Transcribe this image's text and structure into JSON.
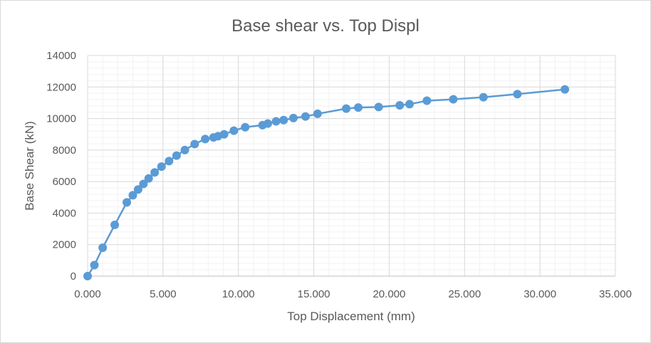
{
  "chart_data": {
    "type": "line",
    "title": "Base shear vs. Top Displ",
    "xlabel": "Top Displacement (mm)",
    "ylabel": "Base Shear (kN)",
    "xlim": [
      0,
      35
    ],
    "ylim": [
      0,
      14000
    ],
    "x_ticks": [
      0,
      5,
      10,
      15,
      20,
      25,
      30,
      35
    ],
    "x_tick_labels": [
      "0.000",
      "5.000",
      "10.000",
      "15.000",
      "20.000",
      "25.000",
      "30.000",
      "35.000"
    ],
    "y_ticks": [
      0,
      2000,
      4000,
      6000,
      8000,
      10000,
      12000,
      14000
    ],
    "y_tick_labels": [
      "0",
      "2000",
      "4000",
      "6000",
      "8000",
      "10000",
      "12000",
      "14000"
    ],
    "grid": true,
    "minor_grid": true,
    "legend": "none",
    "series": [
      {
        "color": "#5b9bd5",
        "marker": "circle",
        "points": [
          [
            0.0,
            0
          ],
          [
            0.45,
            700
          ],
          [
            1.0,
            1800
          ],
          [
            1.8,
            3250
          ],
          [
            2.6,
            4680
          ],
          [
            3.0,
            5130
          ],
          [
            3.35,
            5500
          ],
          [
            3.7,
            5850
          ],
          [
            4.05,
            6200
          ],
          [
            4.45,
            6580
          ],
          [
            4.9,
            6950
          ],
          [
            5.4,
            7300
          ],
          [
            5.9,
            7650
          ],
          [
            6.45,
            8000
          ],
          [
            7.1,
            8380
          ],
          [
            7.8,
            8700
          ],
          [
            8.35,
            8800
          ],
          [
            8.65,
            8880
          ],
          [
            9.05,
            9000
          ],
          [
            9.7,
            9230
          ],
          [
            10.45,
            9450
          ],
          [
            11.6,
            9580
          ],
          [
            11.95,
            9680
          ],
          [
            12.5,
            9820
          ],
          [
            13.0,
            9900
          ],
          [
            13.65,
            10030
          ],
          [
            14.45,
            10130
          ],
          [
            15.25,
            10300
          ],
          [
            17.15,
            10630
          ],
          [
            17.95,
            10700
          ],
          [
            19.3,
            10730
          ],
          [
            20.7,
            10840
          ],
          [
            21.35,
            10910
          ],
          [
            22.5,
            11130
          ],
          [
            24.25,
            11220
          ],
          [
            26.25,
            11350
          ],
          [
            28.5,
            11550
          ],
          [
            31.65,
            11850
          ]
        ]
      }
    ]
  }
}
